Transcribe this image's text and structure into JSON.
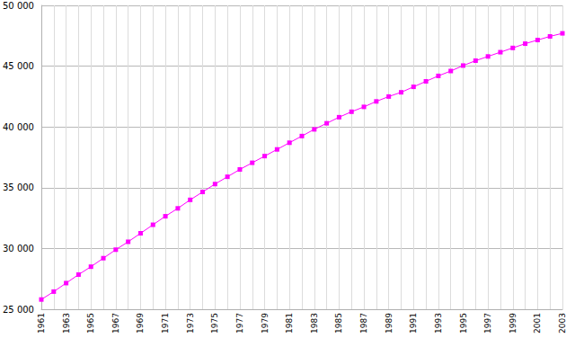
{
  "chart_data": {
    "type": "line",
    "categories": [
      "1961",
      null,
      "1963",
      null,
      "1965",
      null,
      "1967",
      null,
      "1969",
      null,
      "1971",
      null,
      "1973",
      null,
      "1975",
      null,
      "1977",
      null,
      "1979",
      null,
      "1981",
      null,
      "1983",
      null,
      "1985",
      null,
      "1987",
      null,
      "1989",
      null,
      "1991",
      null,
      "1993",
      null,
      "1995",
      null,
      "1997",
      null,
      "1999",
      null,
      "2001",
      null,
      "2003"
    ],
    "values": [
      25800,
      26450,
      27150,
      27850,
      28500,
      29200,
      29900,
      30550,
      31250,
      31950,
      32650,
      33300,
      34000,
      34650,
      35300,
      35900,
      36500,
      37050,
      37600,
      38150,
      38700,
      39250,
      39800,
      40300,
      40800,
      41250,
      41650,
      42100,
      42500,
      42850,
      43300,
      43750,
      44200,
      44600,
      45050,
      45450,
      45800,
      46150,
      46500,
      46850,
      47150,
      47450,
      47700
    ],
    "color": "#ff00ff",
    "marker": "square",
    "line_style": "solid",
    "ylim": [
      25000,
      50000
    ],
    "yticks": [
      {
        "value": 25000,
        "label": "25 000"
      },
      {
        "value": 30000,
        "label": "30 000"
      },
      {
        "value": 35000,
        "label": "35 000"
      },
      {
        "value": 40000,
        "label": "40 000"
      },
      {
        "value": 45000,
        "label": "45 000"
      },
      {
        "value": 50000,
        "label": "50 000"
      }
    ],
    "grid": true
  }
}
